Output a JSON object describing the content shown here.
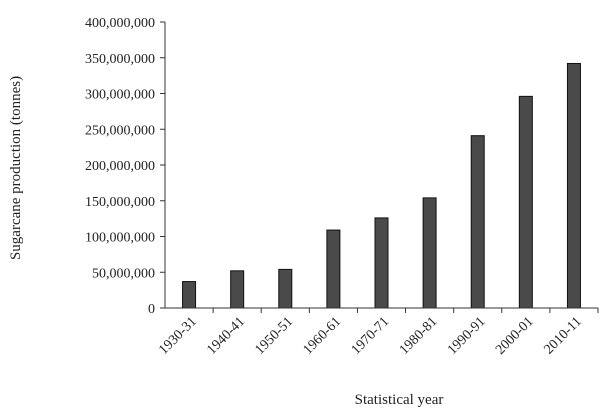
{
  "chart_data": {
    "type": "bar",
    "title": "",
    "xlabel": "Statistical year",
    "ylabel": "Sugarcane production  (tonnes)",
    "categories": [
      "1930-31",
      "1940-41",
      "1950-51",
      "1960-61",
      "1970-71",
      "1980-81",
      "1990-91",
      "2000-01",
      "2010-11"
    ],
    "values": [
      37000000,
      52000000,
      54000000,
      109000000,
      126000000,
      154000000,
      241000000,
      296000000,
      342000000
    ],
    "ylim": [
      0,
      400000000
    ],
    "yticks": [
      0,
      50000000,
      100000000,
      150000000,
      200000000,
      250000000,
      300000000,
      350000000,
      400000000
    ],
    "ytick_labels": [
      "0",
      "50,000,000",
      "100,000,000",
      "150,000,000",
      "200,000,000",
      "250,000,000",
      "300,000,000",
      "350,000,000",
      "400,000,000"
    ],
    "grid": false,
    "legend": "none",
    "colors": {
      "bar_fill": "#4a4a4a",
      "bar_stroke": "#111111",
      "axis": "#333333"
    }
  }
}
